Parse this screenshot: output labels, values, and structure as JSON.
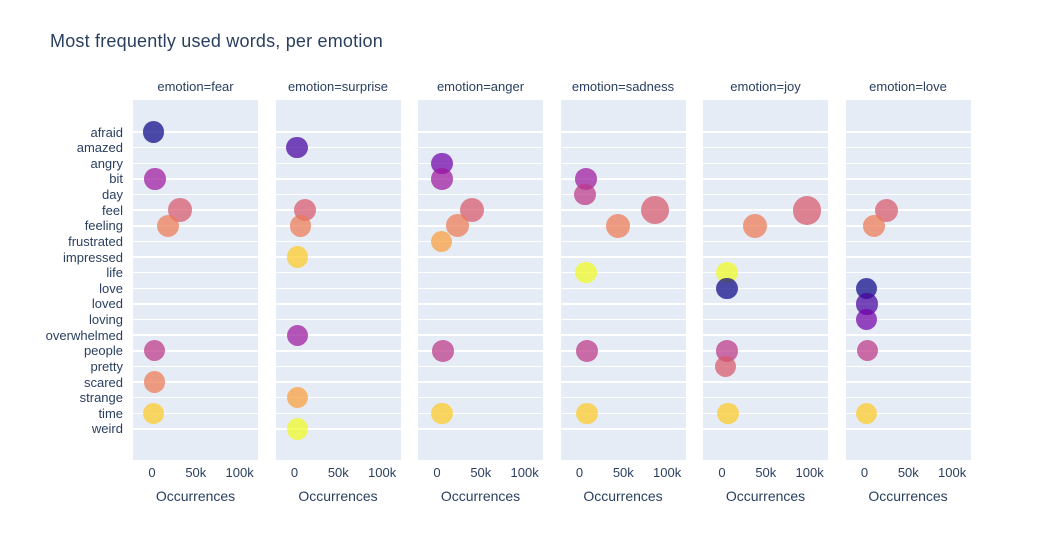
{
  "title": "Most frequently used words, per emotion",
  "colors": {
    "text": "#2a3f5f",
    "page_background": "#ffffff",
    "panel_background": "#e5ecf6",
    "gridline": "#ffffff",
    "marker_opacity": 0.72,
    "plasma_cycle": [
      "#0d0887",
      "#46039f",
      "#7201a8",
      "#9c179e",
      "#bd3786",
      "#d8576b",
      "#ed7953",
      "#fa9e3b",
      "#fdc926",
      "#f0f921"
    ]
  },
  "chart_data": {
    "type": "scatter",
    "title": "Most frequently used words, per emotion",
    "xlabel": "Occurrences",
    "ylabel": "",
    "legend": "none",
    "grid": "horizontal-white-lines-per-category",
    "xlim": [
      -21600,
      120900
    ],
    "x_ticks": [
      {
        "label": "0",
        "value": 0
      },
      {
        "label": "50k",
        "value": 50000
      },
      {
        "label": "100k",
        "value": 100000
      }
    ],
    "categories": [
      "afraid",
      "amazed",
      "angry",
      "bit",
      "day",
      "feel",
      "feeling",
      "frustrated",
      "impressed",
      "life",
      "love",
      "loved",
      "loving",
      "overwhelmed",
      "people",
      "pretty",
      "scared",
      "strange",
      "time",
      "weird"
    ],
    "word_colors": {
      "afraid": "#0d0887",
      "amazed": "#46039f",
      "angry": "#7201a8",
      "bit": "#9c179e",
      "day": "#bd3786",
      "feel": "#d8576b",
      "feeling": "#ed7953",
      "frustrated": "#fa9e3b",
      "impressed": "#fdc926",
      "life": "#f0f921",
      "love": "#0d0887",
      "loved": "#46039f",
      "loving": "#7201a8",
      "overwhelmed": "#9c179e",
      "people": "#bd3786",
      "pretty": "#d8576b",
      "scared": "#ed7953",
      "strange": "#fa9e3b",
      "time": "#fdc926",
      "weird": "#f0f921"
    },
    "facets": [
      {
        "label": "emotion=fear",
        "points": [
          {
            "word": "afraid",
            "value": 2000
          },
          {
            "word": "bit",
            "value": 3500
          },
          {
            "word": "feel",
            "value": 32000
          },
          {
            "word": "feeling",
            "value": 18000
          },
          {
            "word": "people",
            "value": 3000
          },
          {
            "word": "scared",
            "value": 3000
          },
          {
            "word": "time",
            "value": 2000
          }
        ]
      },
      {
        "label": "emotion=surprise",
        "points": [
          {
            "word": "amazed",
            "value": 3000
          },
          {
            "word": "feel",
            "value": 12000
          },
          {
            "word": "feeling",
            "value": 7000
          },
          {
            "word": "impressed",
            "value": 3500
          },
          {
            "word": "overwhelmed",
            "value": 3500
          },
          {
            "word": "strange",
            "value": 3500
          },
          {
            "word": "weird",
            "value": 3500
          }
        ]
      },
      {
        "label": "emotion=anger",
        "points": [
          {
            "word": "angry",
            "value": 6000
          },
          {
            "word": "bit",
            "value": 6000
          },
          {
            "word": "feel",
            "value": 40000
          },
          {
            "word": "feeling",
            "value": 23000
          },
          {
            "word": "frustrated",
            "value": 5000
          },
          {
            "word": "people",
            "value": 7000
          },
          {
            "word": "time",
            "value": 6000
          }
        ]
      },
      {
        "label": "emotion=sadness",
        "points": [
          {
            "word": "bit",
            "value": 7500
          },
          {
            "word": "day",
            "value": 6500
          },
          {
            "word": "feel",
            "value": 86000
          },
          {
            "word": "feeling",
            "value": 44000
          },
          {
            "word": "life",
            "value": 7500
          },
          {
            "word": "people",
            "value": 8500
          },
          {
            "word": "time",
            "value": 8500
          }
        ]
      },
      {
        "label": "emotion=joy",
        "points": [
          {
            "word": "feel",
            "value": 97000
          },
          {
            "word": "feeling",
            "value": 38000
          },
          {
            "word": "life",
            "value": 6000
          },
          {
            "word": "love",
            "value": 6000
          },
          {
            "word": "people",
            "value": 6000
          },
          {
            "word": "pretty",
            "value": 4000
          },
          {
            "word": "time",
            "value": 7000
          }
        ]
      },
      {
        "label": "emotion=love",
        "points": [
          {
            "word": "feel",
            "value": 25000
          },
          {
            "word": "feeling",
            "value": 11000
          },
          {
            "word": "love",
            "value": 2500
          },
          {
            "word": "loved",
            "value": 3000
          },
          {
            "word": "loving",
            "value": 2500
          },
          {
            "word": "people",
            "value": 3500
          },
          {
            "word": "time",
            "value": 2500
          }
        ]
      }
    ]
  }
}
